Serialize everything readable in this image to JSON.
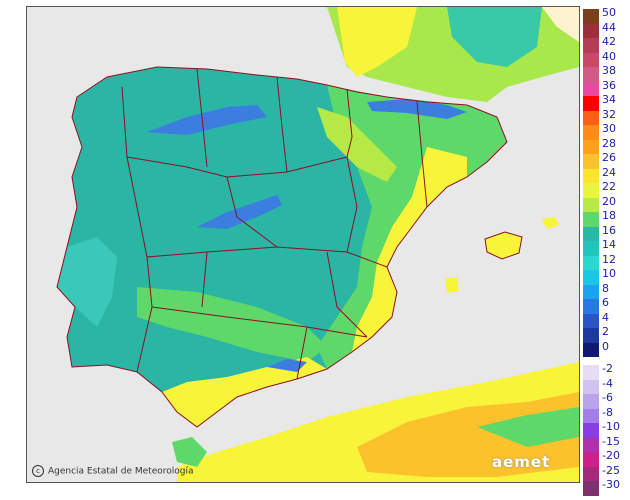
{
  "map": {
    "colors": {
      "sea": "#e8e8e8",
      "land_outside": "#fff3cf",
      "base_cyan": "#2ab5a5",
      "light_cyan": "#2fd0c8",
      "green": "#5fd86a",
      "yellow_green": "#b6e846",
      "yellow": "#f7f43a",
      "orange": "#fcc22b",
      "blue": "#3c7de0",
      "border": "#8a1020"
    }
  },
  "legend": {
    "items": [
      {
        "label": "50",
        "color": "#7b3f1a"
      },
      {
        "label": "44",
        "color": "#9b3038"
      },
      {
        "label": "42",
        "color": "#b53c54"
      },
      {
        "label": "40",
        "color": "#c94868"
      },
      {
        "label": "38",
        "color": "#d45a86"
      },
      {
        "label": "36",
        "color": "#e94aa0"
      },
      {
        "label": "34",
        "color": "#ff0000"
      },
      {
        "label": "32",
        "color": "#ff5d16"
      },
      {
        "label": "30",
        "color": "#ff8c14"
      },
      {
        "label": "28",
        "color": "#ffa21a"
      },
      {
        "label": "26",
        "color": "#fcc22b"
      },
      {
        "label": "24",
        "color": "#fbe42a"
      },
      {
        "label": "22",
        "color": "#e9f53a"
      },
      {
        "label": "20",
        "color": "#b7ea44"
      },
      {
        "label": "18",
        "color": "#5fd86a"
      },
      {
        "label": "16",
        "color": "#28b8a8"
      },
      {
        "label": "14",
        "color": "#1fc6bb"
      },
      {
        "label": "12",
        "color": "#2ad8d2"
      },
      {
        "label": "10",
        "color": "#19c8e6"
      },
      {
        "label": "8",
        "color": "#1aa3ee"
      },
      {
        "label": "6",
        "color": "#2878e6"
      },
      {
        "label": "4",
        "color": "#2a55c8"
      },
      {
        "label": "2",
        "color": "#1c3a9e"
      },
      {
        "label": "0",
        "color": "#101a70"
      },
      {
        "label": "-2",
        "color": "#e6dcf6"
      },
      {
        "label": "-4",
        "color": "#d0c2f0"
      },
      {
        "label": "-6",
        "color": "#b9a3ea"
      },
      {
        "label": "-8",
        "color": "#a27ee6"
      },
      {
        "label": "-10",
        "color": "#8a3ce6"
      },
      {
        "label": "-15",
        "color": "#b030b0"
      },
      {
        "label": "-20",
        "color": "#d0208c"
      },
      {
        "label": "-25",
        "color": "#a8287a"
      },
      {
        "label": "-30",
        "color": "#80306e"
      }
    ]
  },
  "credit": {
    "icon": "copyright-icon",
    "text": "Agencia Estatal de Meteorología"
  },
  "logo": {
    "text": "aemet"
  }
}
